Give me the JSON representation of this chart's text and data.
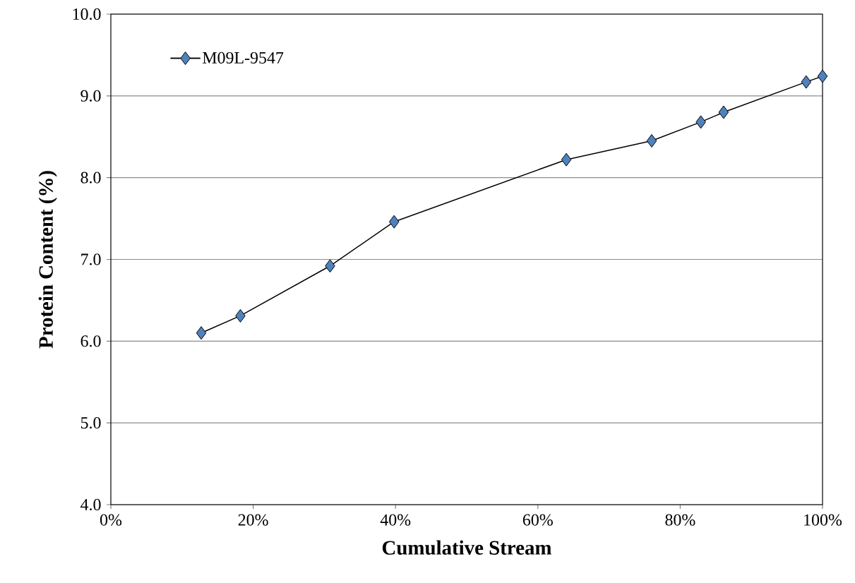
{
  "chart_data": {
    "type": "line",
    "xlabel": "Cumulative Stream",
    "ylabel": "Protein Content (%)",
    "x": [
      12.7,
      18.2,
      30.8,
      39.8,
      64.0,
      76.0,
      82.9,
      86.1,
      97.7,
      100
    ],
    "series": [
      {
        "name": "M09L-9547",
        "color": "#4f81bd",
        "values": [
          6.1,
          6.31,
          6.92,
          7.46,
          8.22,
          8.45,
          8.68,
          8.8,
          9.17,
          9.24
        ]
      }
    ],
    "xlim": [
      0,
      100
    ],
    "ylim": [
      4,
      10
    ],
    "xticks": [
      {
        "value": 0,
        "label": "0%"
      },
      {
        "value": 20,
        "label": "20%"
      },
      {
        "value": 40,
        "label": "40%"
      },
      {
        "value": 60,
        "label": "60%"
      },
      {
        "value": 80,
        "label": "80%"
      },
      {
        "value": 100,
        "label": "100%"
      }
    ],
    "yticks": [
      {
        "value": 4,
        "label": "4.0"
      },
      {
        "value": 5,
        "label": "5.0"
      },
      {
        "value": 6,
        "label": "6.0"
      },
      {
        "value": 7,
        "label": "7.0"
      },
      {
        "value": 8,
        "label": "8.0"
      },
      {
        "value": 9,
        "label": "9.0"
      },
      {
        "value": 10,
        "label": "10.0"
      }
    ],
    "grid": "y",
    "legend": "top left",
    "marker": "diamond",
    "line_style": "solid"
  }
}
